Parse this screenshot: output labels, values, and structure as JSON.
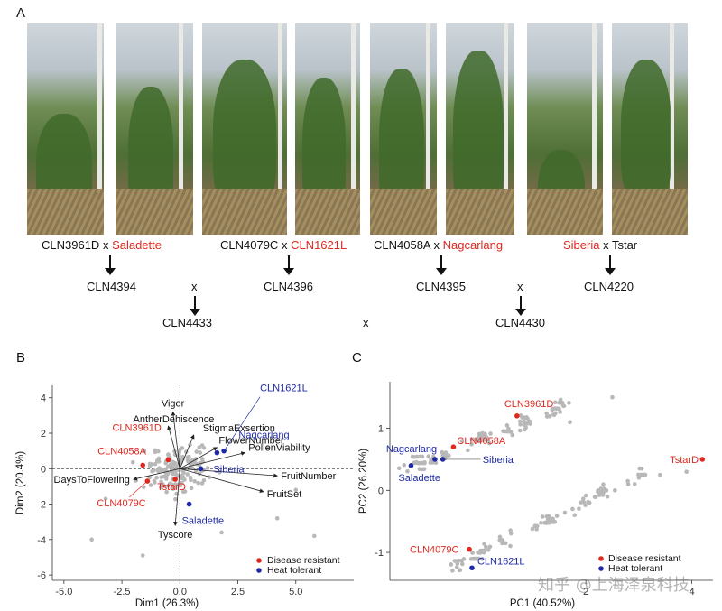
{
  "panels": {
    "a": "A",
    "b": "B",
    "c": "C"
  },
  "crosses": [
    {
      "p1": "CLN3961D",
      "sep": " x ",
      "p2": "Saladette",
      "red": "p2"
    },
    {
      "p1": "CLN4079C",
      "sep": " x ",
      "p2": "CLN1621L",
      "red": "p2"
    },
    {
      "p1": "CLN4058A",
      "sep": " x ",
      "p2": "Nagcarlang",
      "red": "p2"
    },
    {
      "p1": "Siberia",
      "sep": " x ",
      "p2": "Tstar",
      "red": "p1"
    }
  ],
  "f1": [
    "CLN4394",
    "CLN4396",
    "CLN4395",
    "CLN4220"
  ],
  "x_mark": "x",
  "f2": [
    "CLN4433",
    "CLN4430"
  ],
  "biplot": {
    "xlabel": "Dim1 (26.3%)",
    "ylabel": "Dim2 (20.4%)",
    "xticks": [
      "-5.0",
      "-2.5",
      "0.0",
      "2.5",
      "5.0"
    ],
    "yticks": [
      "4",
      "2",
      "0",
      "-2",
      "-4",
      "-6"
    ],
    "xlim": [
      -5.5,
      7.5
    ],
    "ylim": [
      -6.3,
      4.7
    ],
    "vectors": [
      {
        "name": "Vigor",
        "x": -0.3,
        "y": 3.2
      },
      {
        "name": "AntherDehiscence",
        "x": -0.5,
        "y": 2.4
      },
      {
        "name": "StigmaExsertion",
        "x": 0.6,
        "y": 1.9
      },
      {
        "name": "FlowerNumber",
        "x": 1.6,
        "y": 1.2
      },
      {
        "name": "PollenViability",
        "x": 2.8,
        "y": 0.9
      },
      {
        "name": "FruitNumber",
        "x": 4.2,
        "y": -0.4
      },
      {
        "name": "FruitSet",
        "x": 3.6,
        "y": -1.3
      },
      {
        "name": "DaysToFlowering",
        "x": -2.0,
        "y": -0.6
      },
      {
        "name": "Tyscore",
        "x": -0.2,
        "y": -3.2
      }
    ],
    "genotypes": [
      {
        "name": "CLN1621L",
        "x": 1.9,
        "y": 1.0,
        "group": "heat"
      },
      {
        "name": "Nagcarlang",
        "x": 1.6,
        "y": 0.9,
        "group": "heat"
      },
      {
        "name": "Siberia",
        "x": 0.9,
        "y": 0.0,
        "group": "heat"
      },
      {
        "name": "Saladette",
        "x": 0.4,
        "y": -2.0,
        "group": "heat"
      },
      {
        "name": "CLN3961D",
        "x": -0.5,
        "y": 0.5,
        "group": "disease"
      },
      {
        "name": "CLN4058A",
        "x": -1.6,
        "y": 0.2,
        "group": "disease"
      },
      {
        "name": "CLN4079C",
        "x": -1.4,
        "y": -0.7,
        "group": "disease"
      },
      {
        "name": "TstarD",
        "x": -0.2,
        "y": -0.6,
        "group": "disease"
      }
    ],
    "legend": [
      "Disease resistant",
      "Heat tolerant"
    ]
  },
  "pca": {
    "xlabel": "PC1 (40.52%)",
    "ylabel": "PC2 (26.20%)",
    "xticks": [
      "2",
      "4"
    ],
    "yticks": [
      "1",
      "0",
      "-1"
    ],
    "xlim": [
      -1.7,
      4.4
    ],
    "ylim": [
      -1.45,
      1.75
    ],
    "genotypes": [
      {
        "name": "CLN3961D",
        "x": 0.7,
        "y": 1.2,
        "group": "disease"
      },
      {
        "name": "CLN4058A",
        "x": -0.5,
        "y": 0.7,
        "group": "disease"
      },
      {
        "name": "Nagcarlang",
        "x": -0.85,
        "y": 0.5,
        "group": "heat"
      },
      {
        "name": "Siberia",
        "x": -0.7,
        "y": 0.5,
        "group": "heat"
      },
      {
        "name": "Saladette",
        "x": -1.3,
        "y": 0.4,
        "group": "heat"
      },
      {
        "name": "TstarD",
        "x": 4.2,
        "y": 0.5,
        "group": "disease"
      },
      {
        "name": "CLN4079C",
        "x": -0.2,
        "y": -0.95,
        "group": "disease"
      },
      {
        "name": "CLN1621L",
        "x": -0.15,
        "y": -1.25,
        "group": "heat"
      }
    ],
    "legend": [
      "Disease resistant",
      "Heat tolerant"
    ]
  },
  "colors": {
    "disease": "#e0281f",
    "heat": "#1f2aa6",
    "point": "#b8b8b8"
  },
  "watermark": "知乎 @上海泽泉科技"
}
